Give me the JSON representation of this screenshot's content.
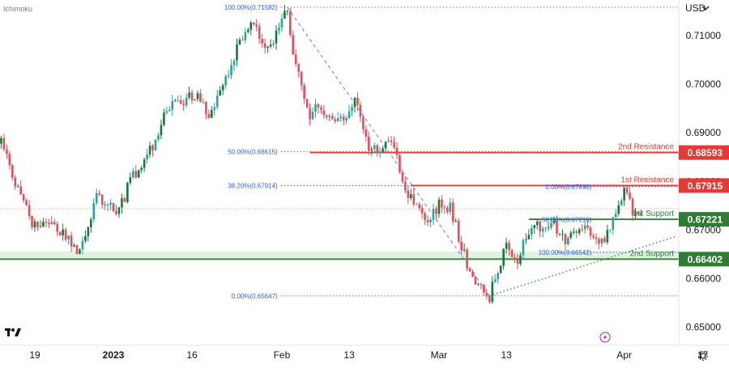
{
  "indicator": {
    "name": "Ichimoku"
  },
  "currency": {
    "label": "USD",
    "chevron_icon": "chevron-down-icon"
  },
  "watermark": {
    "logo_icon": "tradingview-logo-icon"
  },
  "lightning_icon": "lightning-icon",
  "settings_icon": "gear-icon",
  "colors": {
    "up": "#26a69a",
    "up_dark": "#137a3a",
    "down": "#e74c5a",
    "resistance": "#e53935",
    "support": "#2e7d32",
    "fib": "#2962ff",
    "dotted_price": "#f28b82",
    "support_zone": "#e3f1e3"
  },
  "chart_data": {
    "type": "candlestick",
    "y_axis": {
      "range": [
        0.6463,
        0.7173
      ],
      "ticks": [
        {
          "value": 0.71,
          "label": "0.71000"
        },
        {
          "value": 0.7,
          "label": "0.70000"
        },
        {
          "value": 0.69,
          "label": "0.69000"
        },
        {
          "value": 0.68,
          "label": "0.68000"
        },
        {
          "value": 0.67,
          "label": "0.67000"
        },
        {
          "value": 0.66,
          "label": "0.66000"
        },
        {
          "value": 0.65,
          "label": "0.65000"
        }
      ]
    },
    "x_axis": {
      "ticks": [
        {
          "date": "2022-12-19",
          "label": "19",
          "bold": false
        },
        {
          "date": "2023-01-02",
          "label": "2023",
          "bold": true
        },
        {
          "date": "2023-01-16",
          "label": "16",
          "bold": false
        },
        {
          "date": "2023-02-01",
          "label": "Feb",
          "bold": false
        },
        {
          "date": "2023-02-13",
          "label": "13",
          "bold": false
        },
        {
          "date": "2023-03-01",
          "label": "Mar",
          "bold": false
        },
        {
          "date": "2023-03-13",
          "label": "13",
          "bold": false
        },
        {
          "date": "2023-04-03",
          "label": "Apr",
          "bold": false
        },
        {
          "date": "2023-04-17",
          "label": "17",
          "bold": false
        }
      ]
    },
    "price_path": [
      [
        "2022-12-08",
        0.676
      ],
      [
        "2022-12-13",
        0.688
      ],
      [
        "2022-12-16",
        0.678
      ],
      [
        "2022-12-19",
        0.6705
      ],
      [
        "2022-12-22",
        0.6715
      ],
      [
        "2022-12-27",
        0.665
      ],
      [
        "2022-12-30",
        0.677
      ],
      [
        "2023-01-03",
        0.674
      ],
      [
        "2023-01-05",
        0.68
      ],
      [
        "2023-01-09",
        0.6875
      ],
      [
        "2023-01-11",
        0.693
      ],
      [
        "2023-01-13",
        0.696
      ],
      [
        "2023-01-17",
        0.6985
      ],
      [
        "2023-01-19",
        0.693
      ],
      [
        "2023-01-23",
        0.7045
      ],
      [
        "2023-01-25",
        0.71
      ],
      [
        "2023-01-27",
        0.712
      ],
      [
        "2023-01-30",
        0.707
      ],
      [
        "2023-02-02",
        0.7158
      ],
      [
        "2023-02-03",
        0.706
      ],
      [
        "2023-02-06",
        0.6935
      ],
      [
        "2023-02-07",
        0.696
      ],
      [
        "2023-02-09",
        0.6925
      ],
      [
        "2023-02-10",
        0.6935
      ],
      [
        "2023-02-13",
        0.6935
      ],
      [
        "2023-02-14",
        0.698
      ],
      [
        "2023-02-16",
        0.688
      ],
      [
        "2023-02-17",
        0.6865
      ],
      [
        "2023-02-21",
        0.6875
      ],
      [
        "2023-02-23",
        0.678
      ],
      [
        "2023-02-27",
        0.672
      ],
      [
        "2023-03-01",
        0.6755
      ],
      [
        "2023-03-03",
        0.6745
      ],
      [
        "2023-03-07",
        0.6595
      ],
      [
        "2023-03-09",
        0.6575
      ],
      [
        "2023-03-10",
        0.6565
      ],
      [
        "2023-03-13",
        0.6665
      ],
      [
        "2023-03-15",
        0.664
      ],
      [
        "2023-03-17",
        0.67
      ],
      [
        "2023-03-21",
        0.672
      ],
      [
        "2023-03-23",
        0.668
      ],
      [
        "2023-03-27",
        0.67
      ],
      [
        "2023-03-29",
        0.6675
      ],
      [
        "2023-03-31",
        0.669
      ],
      [
        "2023-04-03",
        0.679
      ],
      [
        "2023-04-05",
        0.6725
      ],
      [
        "2023-04-06",
        0.6745
      ]
    ],
    "levels": [
      {
        "kind": "resistance",
        "label": "2nd Resistance",
        "value": 0.68593,
        "badge": "0.68593",
        "from": "2023-02-06"
      },
      {
        "kind": "resistance",
        "label": "1st Resistance",
        "value": 0.67915,
        "badge": "0.67915",
        "from": "2023-02-24"
      },
      {
        "kind": "support",
        "label": "1st Support",
        "value": 0.67221,
        "badge": "0.67221",
        "from": "2023-03-17"
      },
      {
        "kind": "support",
        "label": "2nd Support",
        "value": 0.66402,
        "badge": "0.66402",
        "from": "2022-12-08"
      }
    ],
    "support_zone": {
      "from": 0.66402,
      "to": 0.6656
    },
    "current_price_line": 0.6744,
    "fib_left": [
      {
        "label": "100.00%(0.71582)",
        "value": 0.71582
      },
      {
        "label": "50.00%(0.68615)",
        "value": 0.68615
      },
      {
        "label": "38.20%(0.67914)",
        "value": 0.67914
      },
      {
        "label": "0.00%(0.65647)",
        "value": 0.65647
      }
    ],
    "fib_right": [
      {
        "label": "0.00%(0.67890)",
        "value": 0.6789
      },
      {
        "label": "50.00%(0.67216)",
        "value": 0.67216
      },
      {
        "label": "100.00%(0.66542)",
        "value": 0.66542
      }
    ],
    "trendlines": [
      {
        "style": "dashed",
        "from": [
          "2023-02-02",
          0.7158
        ],
        "to": [
          "2023-03-10",
          0.65647
        ]
      },
      {
        "style": "dotted",
        "from": [
          "2023-03-10",
          0.65647
        ],
        "to": [
          "2023-04-12",
          0.6686
        ]
      }
    ]
  }
}
